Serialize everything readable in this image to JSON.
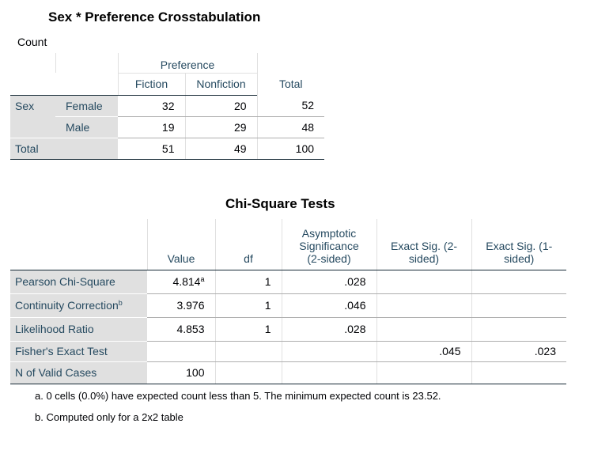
{
  "crosstab": {
    "title": "Sex * Preference Crosstabulation",
    "count_label": "Count",
    "header": {
      "group": "Preference",
      "fiction": "Fiction",
      "nonfiction": "Nonfiction",
      "total": "Total"
    },
    "rows": [
      {
        "group": "Sex",
        "label": "Female",
        "fiction": "32",
        "nonfiction": "20",
        "total": "52"
      },
      {
        "group": "",
        "label": "Male",
        "fiction": "19",
        "nonfiction": "29",
        "total": "48"
      },
      {
        "group": "Total",
        "label": "",
        "fiction": "51",
        "nonfiction": "49",
        "total": "100"
      }
    ]
  },
  "chisq": {
    "title": "Chi-Square Tests",
    "header": {
      "value": "Value",
      "df": "df",
      "asymp": "Asymptotic Significance (2-sided)",
      "exact2": "Exact Sig. (2-sided)",
      "exact1": "Exact Sig. (1-sided)"
    },
    "rows": [
      {
        "label": "Pearson Chi-Square",
        "label_sup": "",
        "value": "4.814",
        "value_sup": "a",
        "df": "1",
        "asymp": ".028",
        "exact2": "",
        "exact1": ""
      },
      {
        "label": "Continuity Correction",
        "label_sup": "b",
        "value": "3.976",
        "value_sup": "",
        "df": "1",
        "asymp": ".046",
        "exact2": "",
        "exact1": ""
      },
      {
        "label": "Likelihood Ratio",
        "label_sup": "",
        "value": "4.853",
        "value_sup": "",
        "df": "1",
        "asymp": ".028",
        "exact2": "",
        "exact1": ""
      },
      {
        "label": "Fisher's Exact Test",
        "label_sup": "",
        "value": "",
        "value_sup": "",
        "df": "",
        "asymp": "",
        "exact2": ".045",
        "exact1": ".023"
      },
      {
        "label": "N of Valid Cases",
        "label_sup": "",
        "value": "100",
        "value_sup": "",
        "df": "",
        "asymp": "",
        "exact2": "",
        "exact1": ""
      }
    ],
    "footnotes": [
      "a. 0 cells (0.0%) have expected count less than 5. The minimum expected count is 23.52.",
      "b. Computed only for a 2x2 table"
    ]
  },
  "colors": {
    "header_text": "#264a60",
    "label_bg": "#e0e0e0",
    "border_dark": "#152935",
    "border_light": "#aeaeae"
  }
}
